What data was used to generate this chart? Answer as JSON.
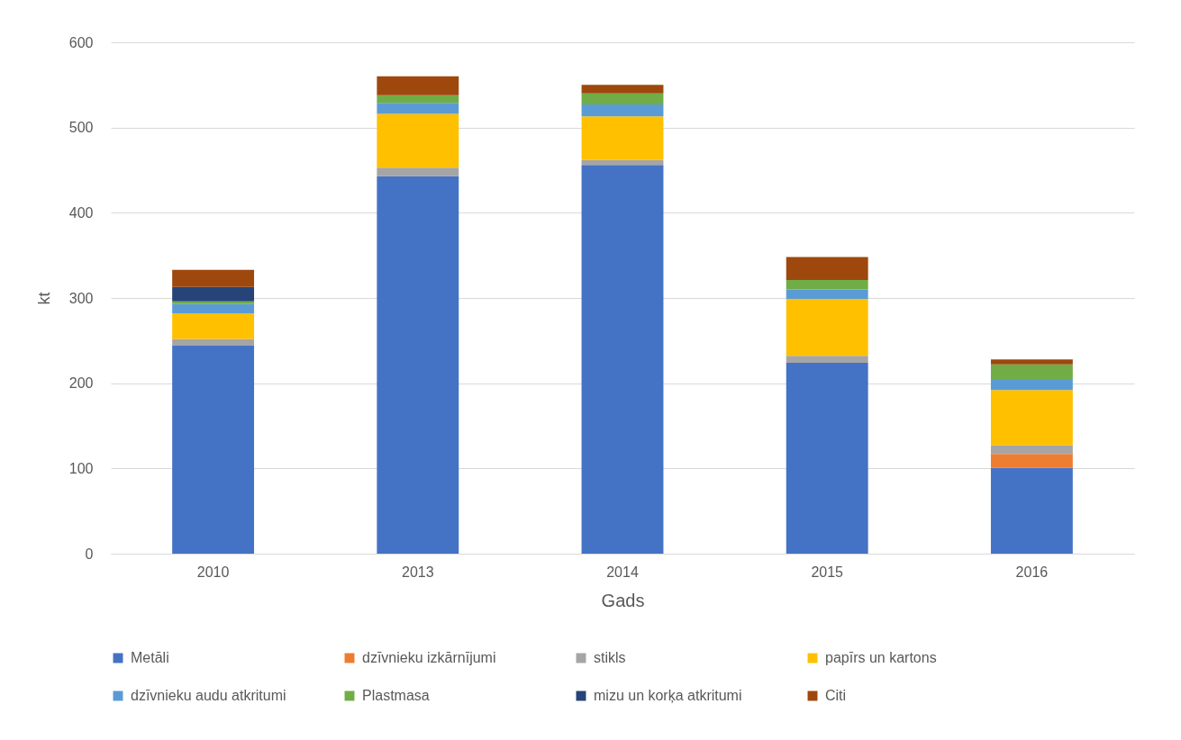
{
  "chart_data": {
    "type": "bar",
    "stacked": true,
    "categories": [
      "2010",
      "2013",
      "2014",
      "2015",
      "2016"
    ],
    "series": [
      {
        "name": "Metāli",
        "color": "#4472c4",
        "values": [
          244,
          443,
          456,
          224,
          101
        ]
      },
      {
        "name": "dzīvnieku izkārnījumi",
        "color": "#ed7d31",
        "values": [
          null,
          null,
          null,
          null,
          16
        ]
      },
      {
        "name": "stikls",
        "color": "#a5a5a5",
        "values": [
          8,
          10,
          6,
          8,
          10
        ]
      },
      {
        "name": "papīrs un kartons",
        "color": "#ffc000",
        "values": [
          30,
          63,
          51,
          67,
          65
        ]
      },
      {
        "name": "dzīvnieku audu atkritumi",
        "color": "#5b9bd5",
        "values": [
          11,
          13,
          14,
          11,
          12
        ]
      },
      {
        "name": "Plastmasa",
        "color": "#70ad47",
        "values": [
          3,
          9,
          13,
          11,
          18
        ]
      },
      {
        "name": "mizu un korķa atkritumi",
        "color": "#264478",
        "values": [
          17,
          null,
          null,
          null,
          null
        ]
      },
      {
        "name": "Citi",
        "color": "#9e480e",
        "values": [
          20,
          22,
          10,
          27,
          6
        ]
      }
    ],
    "xlabel": "Gads",
    "ylabel": "kt",
    "ylim": [
      0,
      600
    ],
    "yticks": [
      0,
      100,
      200,
      300,
      400,
      500,
      600
    ],
    "grid": "y",
    "legend": "bottom"
  }
}
